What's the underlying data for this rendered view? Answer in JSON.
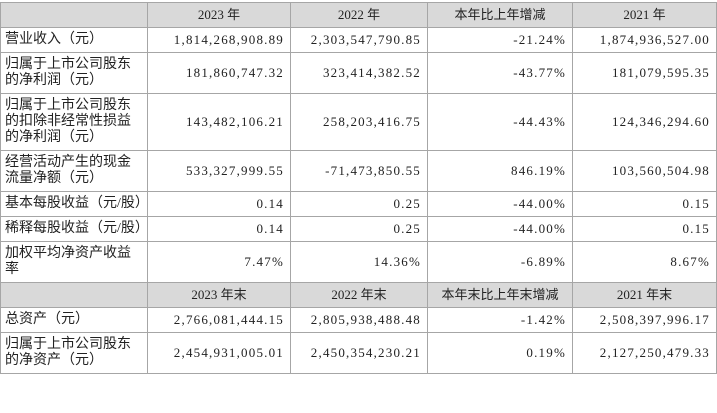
{
  "table": {
    "header": [
      "2023 年",
      "2022 年",
      "本年比上年增减",
      "2021 年"
    ],
    "rows": [
      {
        "label": "营业收入（元）",
        "values": [
          "1,814,268,908.89",
          "2,303,547,790.85",
          "-21.24%",
          "1,874,936,527.00"
        ]
      },
      {
        "label": "归属于上市公司股东的净利润（元）",
        "values": [
          "181,860,747.32",
          "323,414,382.52",
          "-43.77%",
          "181,079,595.35"
        ]
      },
      {
        "label": "归属于上市公司股东的扣除非经常性损益的净利润（元）",
        "values": [
          "143,482,106.21",
          "258,203,416.75",
          "-44.43%",
          "124,346,294.60"
        ]
      },
      {
        "label": "经营活动产生的现金流量净额（元）",
        "values": [
          "533,327,999.55",
          "-71,473,850.55",
          "846.19%",
          "103,560,504.98"
        ]
      },
      {
        "label": "基本每股收益（元/股）",
        "values": [
          "0.14",
          "0.25",
          "-44.00%",
          "0.15"
        ]
      },
      {
        "label": "稀释每股收益（元/股）",
        "values": [
          "0.14",
          "0.25",
          "-44.00%",
          "0.15"
        ]
      },
      {
        "label": "加权平均净资产收益率",
        "values": [
          "7.47%",
          "14.36%",
          "-6.89%",
          "8.67%"
        ]
      }
    ],
    "header2": [
      "2023 年末",
      "2022 年末",
      "本年末比上年末增减",
      "2021 年末"
    ],
    "rows2": [
      {
        "label": "总资产（元）",
        "values": [
          "2,766,081,444.15",
          "2,805,938,488.48",
          "-1.42%",
          "2,508,397,996.17"
        ]
      },
      {
        "label": "归属于上市公司股东的净资产（元）",
        "values": [
          "2,454,931,005.01",
          "2,450,354,230.21",
          "0.19%",
          "2,127,250,479.33"
        ]
      }
    ]
  }
}
